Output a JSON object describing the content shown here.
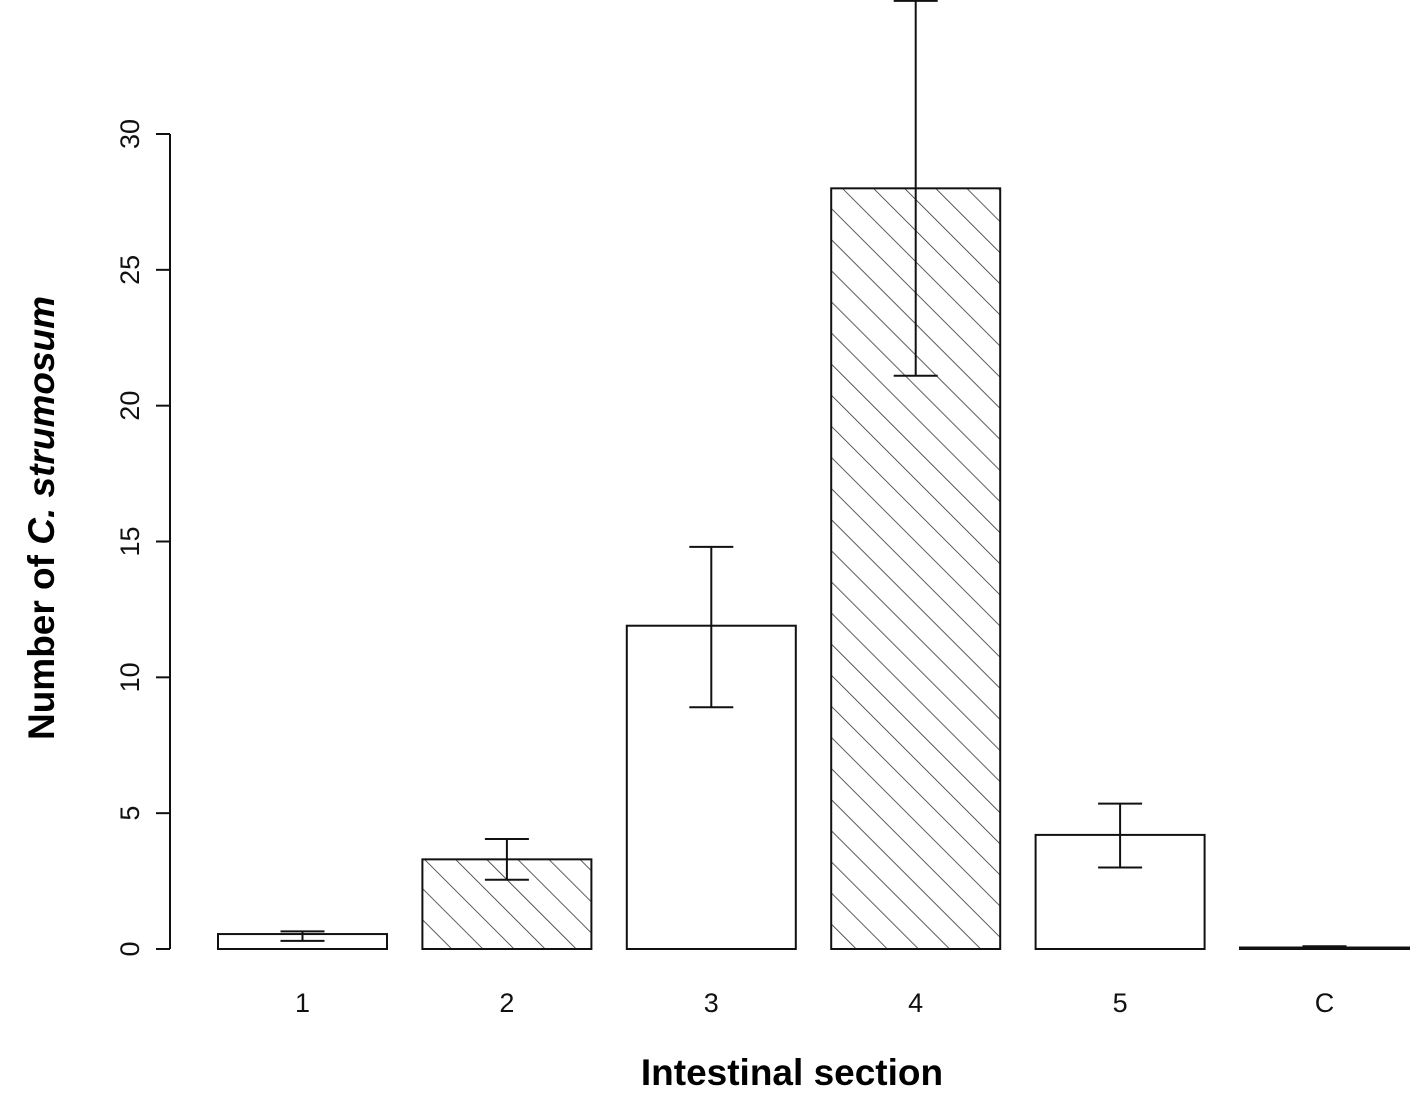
{
  "chart_data": {
    "type": "bar",
    "categories": [
      "1",
      "2",
      "3",
      "4",
      "5",
      "C"
    ],
    "values": [
      0.55,
      3.3,
      11.9,
      28.0,
      4.2,
      0.05
    ],
    "error_upper": [
      0.65,
      4.05,
      14.8,
      34.9,
      5.35,
      0.1
    ],
    "error_lower": [
      0.3,
      2.55,
      8.9,
      21.1,
      3.0,
      0.0
    ],
    "patterns": [
      "none",
      "hatched",
      "none",
      "hatched",
      "none",
      "none"
    ],
    "xlabel": "Intestinal section",
    "ylabel_prefix": "Number of ",
    "ylabel_italic": "C. strumosum",
    "yticks": [
      0,
      5,
      10,
      15,
      20,
      25,
      30
    ],
    "ylim": [
      0,
      30
    ],
    "grid": false,
    "colors": {
      "bar_fill": "#ffffff",
      "bar_stroke": "#111111",
      "hatch": "#333333",
      "error_bar": "#111111"
    }
  }
}
